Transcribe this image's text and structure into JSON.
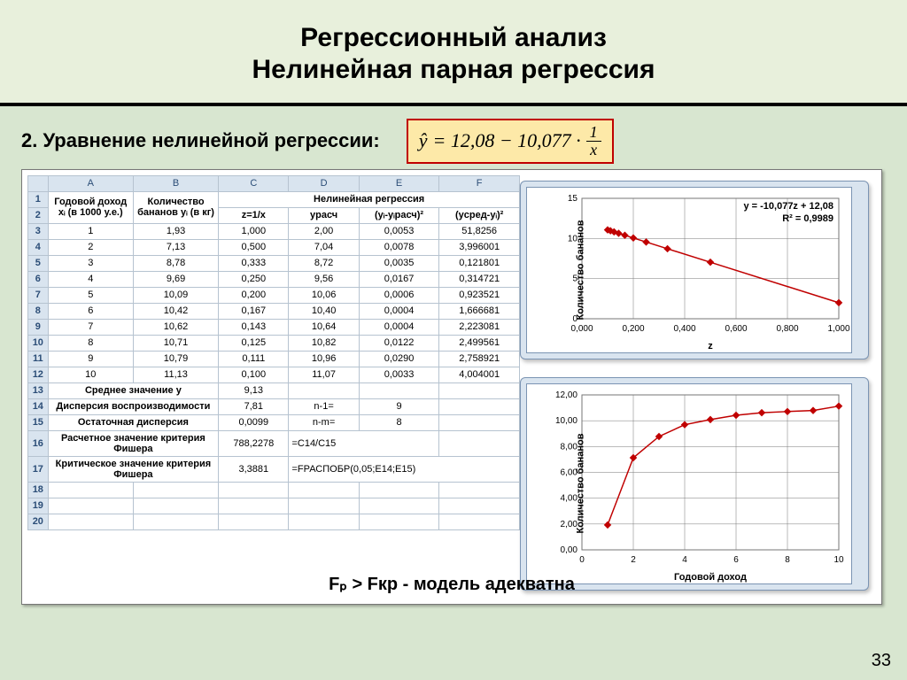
{
  "title_line1": "Регрессионный анализ",
  "title_line2": "Нелинейная парная регрессия",
  "subtitle": "2. Уравнение нелинейной регрессии:",
  "formula": {
    "lhs": "ŷ",
    "eq": " = 12,08 − 10,077 · ",
    "frac_num": "1",
    "frac_den": "x"
  },
  "page_number": "33",
  "footer": "Fₚ > Fкр  - модель адекватна",
  "spreadsheet": {
    "col_letters": [
      "A",
      "B",
      "C",
      "D",
      "E",
      "F"
    ],
    "header_top": "Нелинейная регрессия",
    "h_A": "Годовой доход xᵢ (в 1000 у.е.)",
    "h_B": "Количество бананов yᵢ (в кг)",
    "h_C": "z=1/x",
    "h_D": "yрасч",
    "h_E": "(yᵢ-yᵢрасч)²",
    "h_F": "(yсред-yᵢ)²",
    "rows": [
      [
        "1",
        "1,93",
        "1,000",
        "2,00",
        "0,0053",
        "51,8256"
      ],
      [
        "2",
        "7,13",
        "0,500",
        "7,04",
        "0,0078",
        "3,996001"
      ],
      [
        "3",
        "8,78",
        "0,333",
        "8,72",
        "0,0035",
        "0,121801"
      ],
      [
        "4",
        "9,69",
        "0,250",
        "9,56",
        "0,0167",
        "0,314721"
      ],
      [
        "5",
        "10,09",
        "0,200",
        "10,06",
        "0,0006",
        "0,923521"
      ],
      [
        "6",
        "10,42",
        "0,167",
        "10,40",
        "0,0004",
        "1,666681"
      ],
      [
        "7",
        "10,62",
        "0,143",
        "10,64",
        "0,0004",
        "2,223081"
      ],
      [
        "8",
        "10,71",
        "0,125",
        "10,82",
        "0,0122",
        "2,499561"
      ],
      [
        "9",
        "10,79",
        "0,111",
        "10,96",
        "0,0290",
        "2,758921"
      ],
      [
        "10",
        "11,13",
        "0,100",
        "11,07",
        "0,0033",
        "4,004001"
      ]
    ],
    "mean_label": "Среднее значение y",
    "mean_val": "9,13",
    "disp1_label": "Дисперсия воспроизводимости",
    "disp1_val": "7,81",
    "disp1_n": "n-1=",
    "disp1_nval": "9",
    "disp2_label": "Остаточная дисперсия",
    "disp2_val": "0,0099",
    "disp2_n": "n-m=",
    "disp2_nval": "8",
    "fcalc_label": "Расчетное значение критерия Фишера",
    "fcalc_val": "788,2278",
    "fcalc_formula": "=C14/C15",
    "fcrit_label": "Критическое значение критерия Фишера",
    "fcrit_val": "3,3881",
    "fcrit_formula": "=FРАСПОБР(0,05;E14;E15)"
  },
  "chart1": {
    "type": "scatter-with-trendline",
    "eq_line1": "y = -10,077z + 12,08",
    "eq_line2": "R² = 0,9989",
    "ylabel": "Количество бананов",
    "xlabel": "z",
    "xticks": [
      "0,000",
      "0,200",
      "0,400",
      "0,600",
      "0,800",
      "1,000"
    ],
    "yticks": [
      "0",
      "5",
      "10",
      "15"
    ],
    "xlim": [
      0,
      1
    ],
    "ylim": [
      0,
      15
    ],
    "points": [
      [
        1.0,
        2.0
      ],
      [
        0.5,
        7.04
      ],
      [
        0.333,
        8.72
      ],
      [
        0.25,
        9.56
      ],
      [
        0.2,
        10.06
      ],
      [
        0.167,
        10.4
      ],
      [
        0.143,
        10.64
      ],
      [
        0.125,
        10.82
      ],
      [
        0.111,
        10.96
      ],
      [
        0.1,
        11.07
      ]
    ],
    "line_color": "#c00000",
    "marker_color": "#c00000",
    "grid_color": "#777",
    "bg": "#fff",
    "marker_size": 3,
    "line_width": 1.5
  },
  "chart2": {
    "type": "line",
    "ylabel": "Количество бананов",
    "xlabel": "Годовой доход",
    "xticks": [
      "0",
      "2",
      "4",
      "6",
      "8",
      "10"
    ],
    "yticks": [
      "0,00",
      "2,00",
      "4,00",
      "6,00",
      "8,00",
      "10,00",
      "12,00"
    ],
    "xlim": [
      0,
      10
    ],
    "ylim": [
      0,
      12
    ],
    "points": [
      [
        1,
        1.93
      ],
      [
        2,
        7.13
      ],
      [
        3,
        8.78
      ],
      [
        4,
        9.69
      ],
      [
        5,
        10.09
      ],
      [
        6,
        10.42
      ],
      [
        7,
        10.62
      ],
      [
        8,
        10.71
      ],
      [
        9,
        10.79
      ],
      [
        10,
        11.13
      ]
    ],
    "line_color": "#c00000",
    "marker_color": "#c00000",
    "grid_color": "#777",
    "bg": "#fff",
    "marker_size": 3,
    "line_width": 1.5
  }
}
